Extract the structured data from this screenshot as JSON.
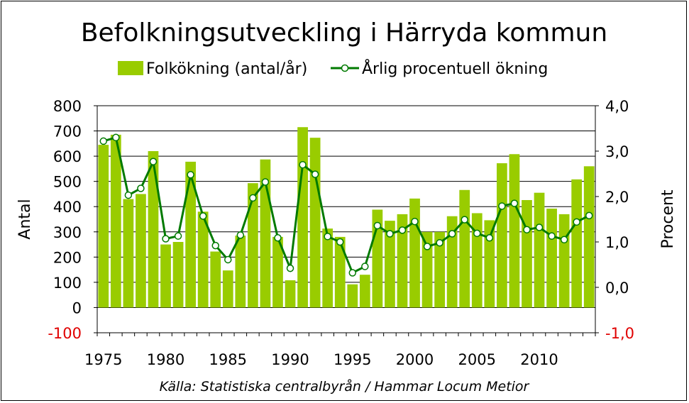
{
  "chart_data": {
    "type": "bar+line",
    "title": "Befolkningsutveckling i Härryda kommun",
    "source": "Källa: Statistiska centralbyrån / Hammar Locum Metior",
    "x": [
      1975,
      1976,
      1977,
      1978,
      1979,
      1980,
      1981,
      1982,
      1983,
      1984,
      1985,
      1986,
      1987,
      1988,
      1989,
      1990,
      1991,
      1992,
      1993,
      1994,
      1995,
      1996,
      1997,
      1998,
      1999,
      2000,
      2001,
      2002,
      2003,
      2004,
      2005,
      2006,
      2007,
      2008,
      2009,
      2010,
      2011,
      2012,
      2013,
      2014
    ],
    "x_tick_labels": [
      "1975",
      "1980",
      "1985",
      "1990",
      "1995",
      "2000",
      "2005",
      "2010"
    ],
    "y_left": {
      "label": "Antal",
      "range": [
        -100,
        800
      ],
      "ticks": [
        "800",
        "700",
        "600",
        "500",
        "400",
        "300",
        "200",
        "100",
        "0",
        "-100"
      ]
    },
    "y_right": {
      "label": "Procent",
      "range": [
        -1.0,
        4.0
      ],
      "ticks": [
        "4,0",
        "3,0",
        "2,0",
        "1,0",
        "0,0",
        "-1,0"
      ]
    },
    "series": [
      {
        "name": "Folkökning (antal/år)",
        "type": "bar",
        "axis": "left",
        "color": "#99cc00",
        "values": [
          645,
          685,
          430,
          450,
          620,
          250,
          260,
          578,
          380,
          222,
          147,
          285,
          493,
          587,
          280,
          108,
          715,
          673,
          313,
          280,
          92,
          130,
          388,
          344,
          370,
          432,
          300,
          300,
          362,
          466,
          374,
          346,
          572,
          608,
          426,
          455,
          392,
          370,
          508,
          560
        ]
      },
      {
        "name": "Årlig procentuell ökning",
        "type": "line",
        "axis": "right",
        "color": "#007a00",
        "values": [
          3.22,
          3.3,
          2.03,
          2.18,
          2.77,
          1.07,
          1.13,
          2.48,
          1.57,
          0.92,
          0.61,
          1.15,
          1.97,
          2.32,
          1.09,
          0.42,
          2.7,
          2.49,
          1.12,
          1.0,
          0.32,
          0.46,
          1.36,
          1.18,
          1.26,
          1.45,
          0.9,
          0.98,
          1.18,
          1.49,
          1.19,
          1.09,
          1.79,
          1.85,
          1.27,
          1.32,
          1.13,
          1.05,
          1.44,
          1.58
        ]
      }
    ],
    "grid": true,
    "legend_position": "top"
  }
}
